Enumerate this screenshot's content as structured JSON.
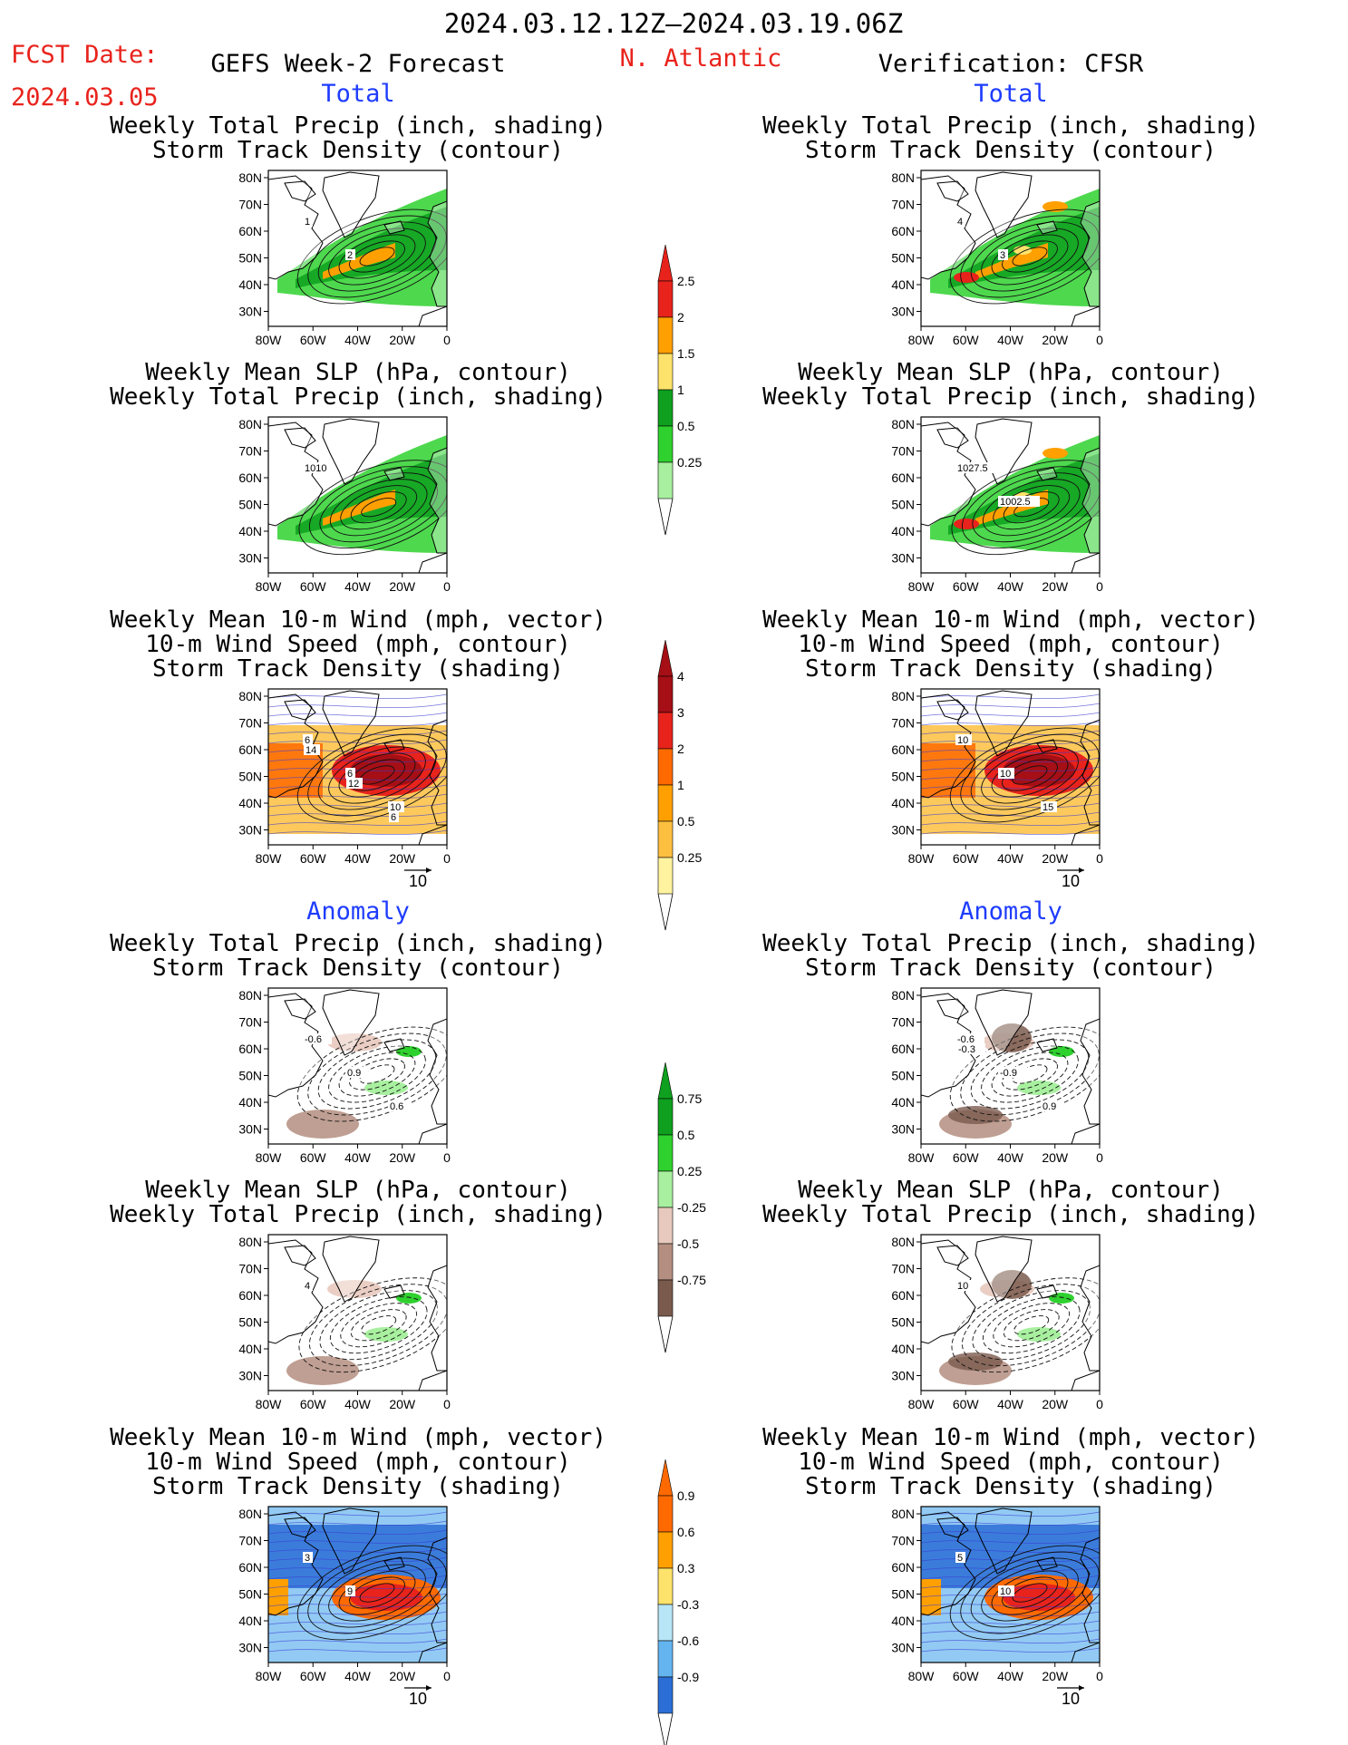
{
  "header": {
    "date_range": "2024.03.12.12Z–2024.03.19.06Z",
    "fcst_label": "FCST Date:",
    "fcst_date": "2024.03.05",
    "forecast_title": "GEFS Week-2 Forecast",
    "region": "N. Atlantic",
    "verification": "Verification: CFSR"
  },
  "sections": {
    "total": "Total",
    "anomaly": "Anomaly"
  },
  "panel_titles": {
    "precip_storm": [
      "Weekly Total Precip (inch, shading)",
      "Storm Track Density (contour)"
    ],
    "slp_precip": [
      "Weekly Mean SLP (hPa, contour)",
      "Weekly Total Precip (inch, shading)"
    ],
    "wind_storm": [
      "Weekly Mean 10-m Wind (mph, vector)",
      "10-m Wind Speed (mph, contour)",
      "Storm Track Density (shading)"
    ]
  },
  "axes": {
    "lat_labels": [
      "80N",
      "70N",
      "60N",
      "50N",
      "40N",
      "30N"
    ],
    "lon_labels": [
      "80W",
      "60W",
      "40W",
      "20W",
      "0"
    ]
  },
  "vector_ref": "10",
  "colorbars": {
    "precip_total": {
      "labels": [
        "2.5",
        "2",
        "1.5",
        "1",
        "0.5",
        "0.25"
      ],
      "colors": [
        "#e8231c",
        "#ffa000",
        "#fde36b",
        "#0ea01e",
        "#2fd12f",
        "#a8f09f"
      ]
    },
    "storm_total": {
      "labels": [
        "4",
        "3",
        "2",
        "1",
        "0.5",
        "0.25"
      ],
      "colors": [
        "#a50f15",
        "#e8231c",
        "#ff6a00",
        "#ffa000",
        "#fdbf3f",
        "#fff3a0"
      ]
    },
    "precip_anom": {
      "labels": [
        "0.75",
        "0.5",
        "0.25",
        "-0.25",
        "-0.5",
        "-0.75"
      ],
      "colors": [
        "#0ea01e",
        "#2fd12f",
        "#a8f09f",
        "#e8c9be",
        "#b48e80",
        "#7a5a4d"
      ]
    },
    "storm_anom": {
      "labels": [
        "0.9",
        "0.6",
        "0.3",
        "-0.3",
        "-0.6",
        "-0.9"
      ],
      "colors": [
        "#ff6a00",
        "#ffa000",
        "#fde36b",
        "#b8e6f7",
        "#64b4f0",
        "#2b6fd6"
      ]
    }
  },
  "contour_labels": {
    "fc_precip_total": [
      "1",
      "2"
    ],
    "ver_precip_total": [
      "4",
      "3"
    ],
    "fc_slp_total": [
      "1010"
    ],
    "ver_slp_total": [
      "1027.5",
      "1002.5"
    ],
    "fc_wind_total": [
      "6",
      "6",
      "10",
      "14",
      "12",
      "6"
    ],
    "ver_wind_total": [
      "10",
      "10",
      "15"
    ],
    "fc_precip_anom": [
      "-0.6",
      "0.9",
      "0.6"
    ],
    "ver_precip_anom": [
      "-0.6",
      "-0.9",
      "0.9",
      "-0.3"
    ],
    "fc_slp_anom": [
      "4"
    ],
    "ver_slp_anom": [
      "10"
    ],
    "fc_wind_anom": [
      "3",
      "9"
    ],
    "ver_wind_anom": [
      "5",
      "10"
    ]
  }
}
